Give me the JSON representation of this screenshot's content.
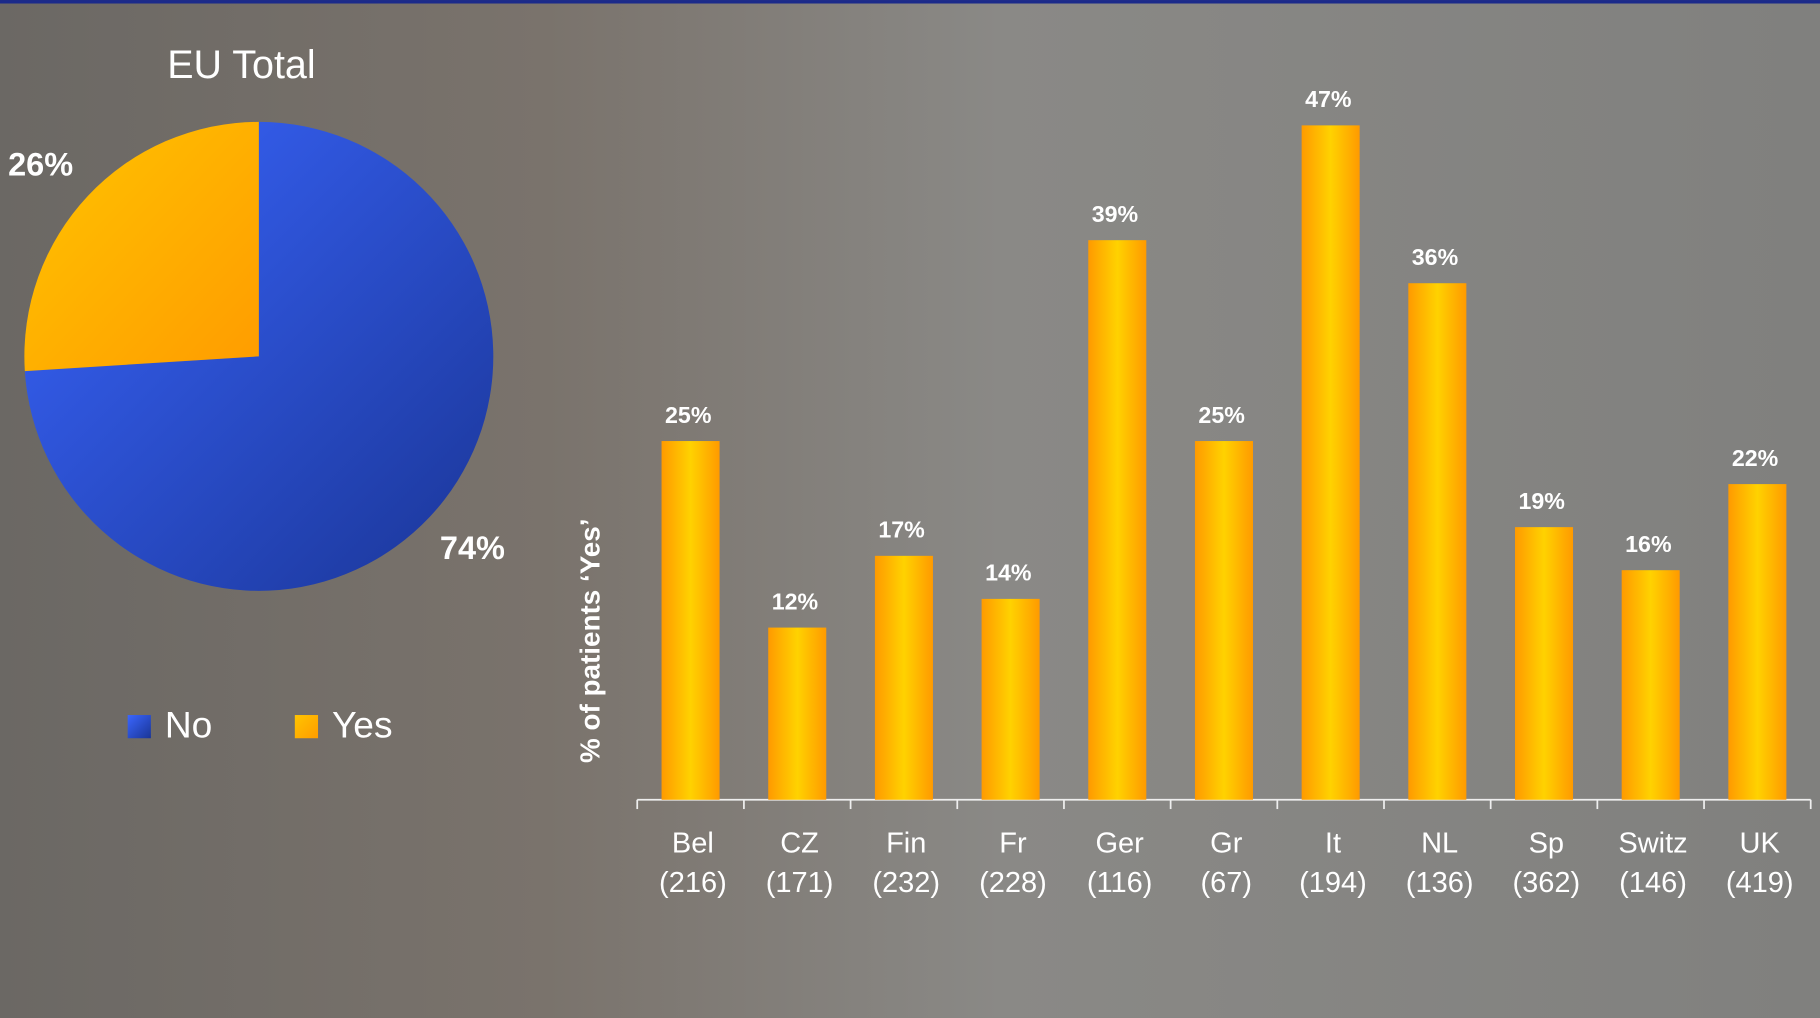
{
  "chart_data": [
    {
      "type": "pie",
      "title": "EU Total",
      "categories": [
        "No",
        "Yes"
      ],
      "values": [
        74,
        26
      ],
      "value_labels": [
        "74%",
        "26%"
      ],
      "colors": [
        "#2f55e0",
        "#ffb400"
      ],
      "legend": "bottom"
    },
    {
      "type": "bar",
      "categories": [
        [
          "Bel",
          "(216)"
        ],
        [
          "CZ",
          "(171)"
        ],
        [
          "Fin",
          "(232)"
        ],
        [
          "Fr",
          "(228)"
        ],
        [
          "Ger",
          "(116)"
        ],
        [
          "Gr",
          "(67)"
        ],
        [
          "It",
          "(194)"
        ],
        [
          "NL",
          "(136)"
        ],
        [
          "Sp",
          "(362)"
        ],
        [
          "Switz",
          "(146)"
        ],
        [
          "UK",
          "(419)"
        ]
      ],
      "values": [
        25,
        12,
        17,
        14,
        39,
        25,
        47,
        36,
        19,
        16,
        22
      ],
      "value_labels": [
        "25%",
        "12%",
        "17%",
        "14%",
        "39%",
        "25%",
        "47%",
        "36%",
        "19%",
        "16%",
        "22%"
      ],
      "ylabel": "% of patients ‘Yes’",
      "ylim": [
        0,
        47
      ],
      "color": "#ffb300",
      "grid": false
    }
  ]
}
